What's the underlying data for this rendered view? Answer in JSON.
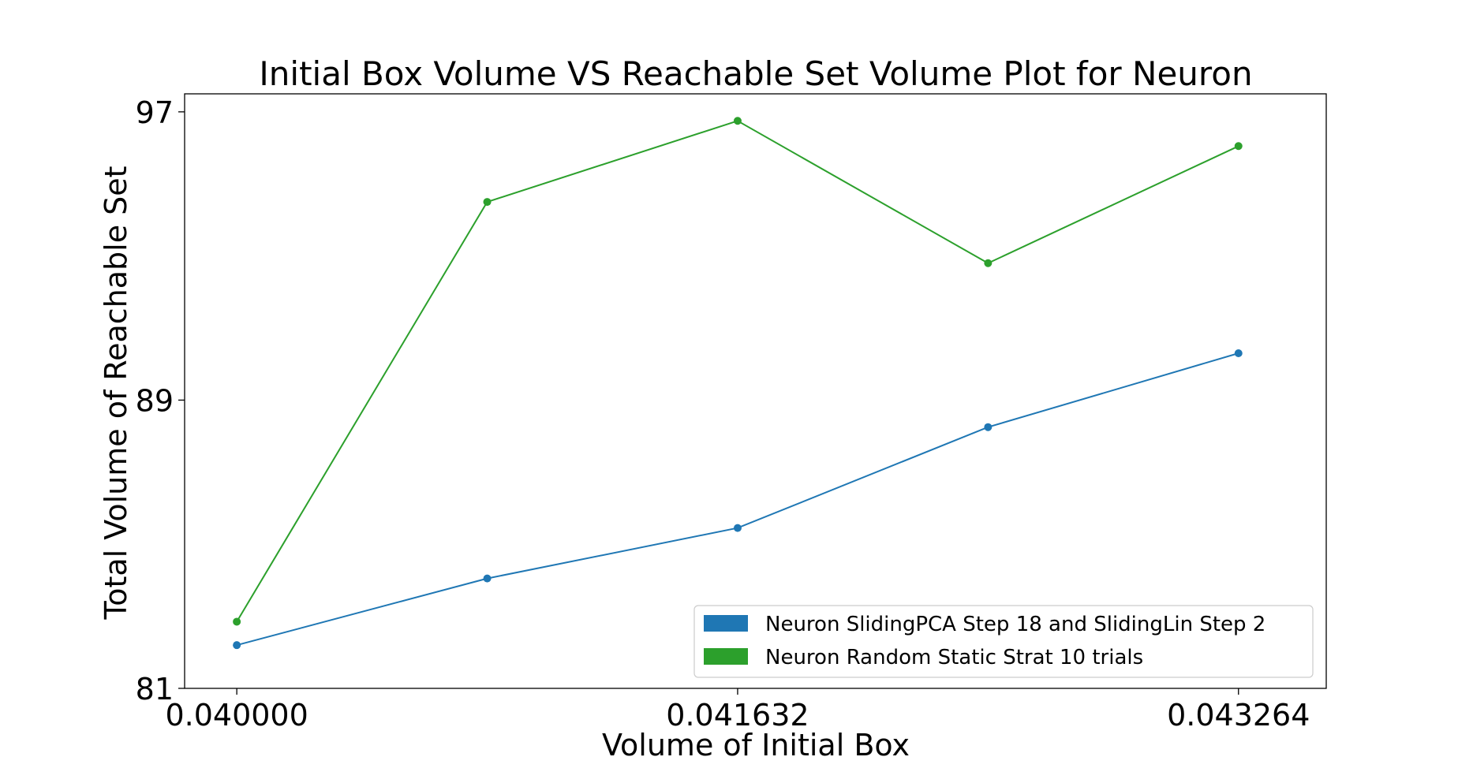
{
  "chart_data": {
    "type": "line",
    "title": "Initial Box Volume VS Reachable Set Volume Plot for Neuron",
    "xlabel": "Volume of Initial Box",
    "ylabel": "Total Volume of Reachable Set",
    "x": [
      0.04,
      0.040816,
      0.041632,
      0.042448,
      0.043264
    ],
    "x_ticks": [
      0.04,
      0.041632,
      0.043264
    ],
    "x_tick_labels": [
      "0.040000",
      "0.041632",
      "0.043264"
    ],
    "y_ticks": [
      81,
      89,
      97
    ],
    "y_tick_labels": [
      "81",
      "89",
      "97"
    ],
    "xlim": [
      0.03983,
      0.04355
    ],
    "ylim": [
      81,
      97.5
    ],
    "grid": false,
    "legend_position": "lower right",
    "series": [
      {
        "name": "Neuron SlidingPCA Step 18 and SlidingLin Step 2",
        "color": "#1f77b4",
        "values": [
          82.2,
          84.05,
          85.45,
          88.25,
          90.3
        ]
      },
      {
        "name": "Neuron Random Static  Strat 10 trials",
        "color": "#2ca02c",
        "values": [
          82.85,
          94.5,
          96.75,
          92.8,
          96.05
        ]
      }
    ]
  }
}
